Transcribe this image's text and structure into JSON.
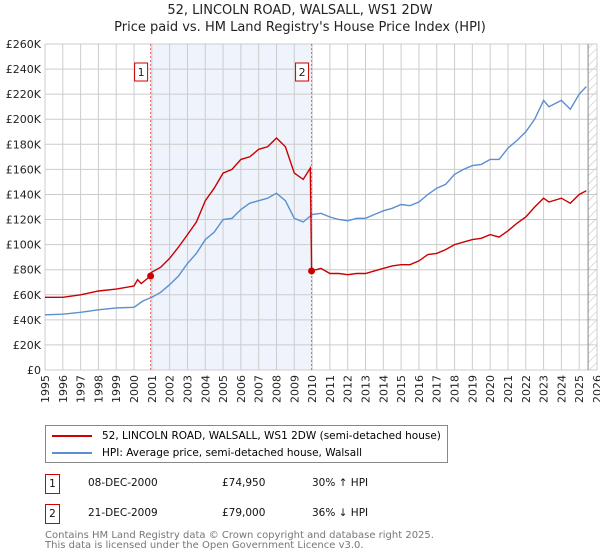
{
  "chart_data": {
    "type": "line",
    "title": "52, LINCOLN ROAD, WALSALL, WS1 2DW",
    "subtitle": "Price paid vs. HM Land Registry's House Price Index (HPI)",
    "xlim": [
      1995,
      2026
    ],
    "ylim": [
      0,
      260000
    ],
    "x_ticks": [
      "1995",
      "1996",
      "1997",
      "1998",
      "1999",
      "2000",
      "2001",
      "2002",
      "2003",
      "2004",
      "2005",
      "2006",
      "2007",
      "2008",
      "2009",
      "2010",
      "2011",
      "2012",
      "2013",
      "2014",
      "2015",
      "2016",
      "2017",
      "2018",
      "2019",
      "2020",
      "2021",
      "2022",
      "2023",
      "2024",
      "2025",
      "2026"
    ],
    "y_ticks": [
      "£0",
      "£20K",
      "£40K",
      "£60K",
      "£80K",
      "£100K",
      "£120K",
      "£140K",
      "£160K",
      "£180K",
      "£200K",
      "£220K",
      "£240K",
      "£260K"
    ],
    "shaded_range": [
      2000.93,
      2009.97
    ],
    "forecast_from": 2025.5,
    "series": [
      {
        "name": "52, LINCOLN ROAD, WALSALL, WS1 2DW (semi-detached house)",
        "color": "#cc0000",
        "x": [
          1995,
          1996,
          1997,
          1998,
          1999,
          2000,
          2000.2,
          2000.4,
          2000.93,
          2001,
          2001.5,
          2002,
          2002.5,
          2003,
          2003.5,
          2004,
          2004.5,
          2005,
          2005.5,
          2006,
          2006.5,
          2007,
          2007.5,
          2008,
          2008.5,
          2009,
          2009.5,
          2009.9,
          2009.97,
          2010.5,
          2011,
          2011.5,
          2012,
          2012.5,
          2013,
          2013.5,
          2014,
          2014.5,
          2015,
          2015.5,
          2016,
          2016.5,
          2017,
          2017.5,
          2018,
          2018.5,
          2019,
          2019.5,
          2020,
          2020.5,
          2021,
          2021.5,
          2022,
          2022.5,
          2023,
          2023.3,
          2024,
          2024.5,
          2025,
          2025.4
        ],
        "y": [
          58,
          58,
          60,
          63,
          64.5,
          67,
          72,
          69,
          74.95,
          78,
          82,
          89,
          98,
          108,
          118,
          135,
          145,
          157,
          160,
          168,
          170,
          176,
          178,
          185,
          178,
          157,
          152,
          161,
          79,
          81,
          77,
          77,
          76,
          77,
          77,
          79,
          81,
          83,
          84,
          84,
          87,
          92,
          93,
          96,
          100,
          102,
          104,
          105,
          108,
          106,
          111,
          117,
          122,
          130,
          137,
          134,
          137,
          133,
          140,
          143
        ]
      },
      {
        "name": "HPI: Average price, semi-detached house, Walsall",
        "color": "#5b8fd0",
        "x": [
          1995,
          1996,
          1997,
          1998,
          1999,
          2000,
          2000.5,
          2001,
          2001.5,
          2002,
          2002.5,
          2003,
          2003.5,
          2004,
          2004.5,
          2005,
          2005.5,
          2006,
          2006.5,
          2007,
          2007.5,
          2008,
          2008.5,
          2009,
          2009.5,
          2010,
          2010.5,
          2011,
          2011.5,
          2012,
          2012.5,
          2013,
          2013.5,
          2014,
          2014.5,
          2015,
          2015.5,
          2016,
          2016.5,
          2017,
          2017.5,
          2018,
          2018.5,
          2019,
          2019.5,
          2020,
          2020.5,
          2021,
          2021.5,
          2022,
          2022.5,
          2023,
          2023.3,
          2024,
          2024.5,
          2025,
          2025.4
        ],
        "y": [
          44,
          44.5,
          46,
          48,
          49.5,
          50,
          55,
          58,
          62,
          68,
          75,
          85,
          93,
          104,
          110,
          120,
          121,
          128,
          133,
          135,
          137,
          141,
          135,
          121,
          118,
          124,
          125,
          122,
          120,
          119,
          121,
          121,
          124,
          127,
          129,
          132,
          131,
          134,
          140,
          145,
          148,
          156,
          160,
          163,
          164,
          168,
          168,
          177,
          183,
          190,
          200,
          215,
          210,
          215,
          208,
          220,
          226
        ]
      }
    ],
    "y_unit": "thousands GBP",
    "sales": [
      {
        "label": "1",
        "x": 2000.93,
        "y": 74.95
      },
      {
        "label": "2",
        "x": 2009.97,
        "y": 79
      }
    ]
  },
  "legend": [
    "52, LINCOLN ROAD, WALSALL, WS1 2DW (semi-detached house)",
    "HPI: Average price, semi-detached house, Walsall"
  ],
  "transactions": [
    {
      "num": "1",
      "date": "08-DEC-2000",
      "price": "£74,950",
      "hpi": "30% ↑ HPI"
    },
    {
      "num": "2",
      "date": "21-DEC-2009",
      "price": "£79,000",
      "hpi": "36% ↓ HPI"
    }
  ],
  "footer": [
    "Contains HM Land Registry data © Crown copyright and database right 2025.",
    "This data is licensed under the Open Government Licence v3.0."
  ]
}
